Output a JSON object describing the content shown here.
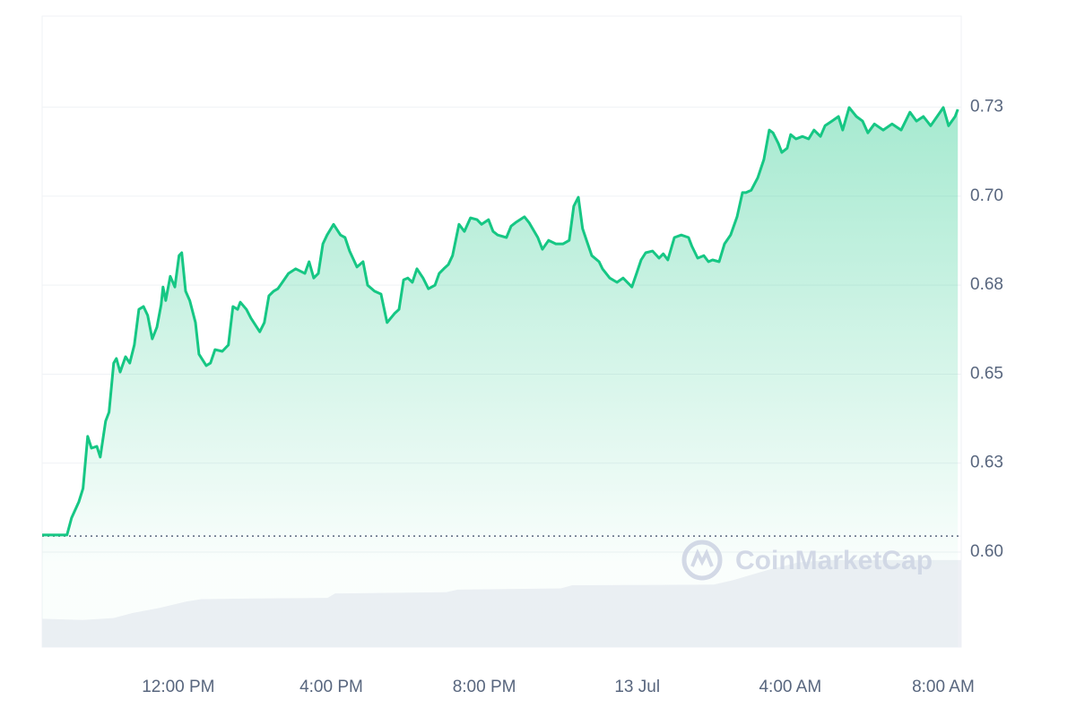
{
  "chart_data": {
    "type": "line",
    "watermark": "CoinMarketCap",
    "color": "#16c784",
    "xlim": [
      8.44,
      32.47
    ],
    "xticks": [
      {
        "value": 12,
        "label": "12:00 PM"
      },
      {
        "value": 16,
        "label": "4:00 PM"
      },
      {
        "value": 20,
        "label": "8:00 PM"
      },
      {
        "value": 24,
        "label": "13 Jul"
      },
      {
        "value": 28,
        "label": "4:00 AM"
      },
      {
        "value": 32,
        "label": "8:00 AM"
      }
    ],
    "ylim": [
      0.5733,
      0.7506
    ],
    "yticks": [
      {
        "value": 0.6,
        "label": "0.60"
      },
      {
        "value": 0.625,
        "label": "0.63"
      },
      {
        "value": 0.65,
        "label": "0.65"
      },
      {
        "value": 0.675,
        "label": "0.68"
      },
      {
        "value": 0.7,
        "label": "0.70"
      },
      {
        "value": 0.725,
        "label": "0.73"
      }
    ],
    "grid": true,
    "baseline": 0.6045,
    "x": [
      8.44,
      8.74,
      9.09,
      9.21,
      9.4,
      9.51,
      9.63,
      9.73,
      9.87,
      9.96,
      10.1,
      10.19,
      10.31,
      10.38,
      10.48,
      10.62,
      10.73,
      10.85,
      10.97,
      11.09,
      11.2,
      11.32,
      11.44,
      11.55,
      11.6,
      11.67,
      11.79,
      11.91,
      12.02,
      12.09,
      12.19,
      12.3,
      12.45,
      12.54,
      12.73,
      12.84,
      12.96,
      13.15,
      13.31,
      13.43,
      13.55,
      13.62,
      13.78,
      13.9,
      14.13,
      14.25,
      14.37,
      14.49,
      14.6,
      14.72,
      14.88,
      15.07,
      15.31,
      15.42,
      15.54,
      15.66,
      15.78,
      15.89,
      16.06,
      16.24,
      16.36,
      16.48,
      16.67,
      16.83,
      16.95,
      17.13,
      17.3,
      17.46,
      17.65,
      17.77,
      17.89,
      18.0,
      18.12,
      18.24,
      18.4,
      18.54,
      18.71,
      18.82,
      18.94,
      19.06,
      19.17,
      19.34,
      19.48,
      19.64,
      19.81,
      19.93,
      20.11,
      20.23,
      20.35,
      20.58,
      20.7,
      20.82,
      21.05,
      21.17,
      21.4,
      21.52,
      21.68,
      21.87,
      22.06,
      22.22,
      22.34,
      22.46,
      22.57,
      22.69,
      22.81,
      23.0,
      23.09,
      23.28,
      23.47,
      23.63,
      23.86,
      23.98,
      24.1,
      24.22,
      24.4,
      24.57,
      24.68,
      24.8,
      24.97,
      25.15,
      25.34,
      25.43,
      25.58,
      25.74,
      25.86,
      25.97,
      26.14,
      26.28,
      26.44,
      26.61,
      26.75,
      26.84,
      26.98,
      27.15,
      27.31,
      27.45,
      27.55,
      27.69,
      27.78,
      27.92,
      28.01,
      28.15,
      28.32,
      28.48,
      28.62,
      28.79,
      28.91,
      29.09,
      29.26,
      29.37,
      29.54,
      29.73,
      29.89,
      30.03,
      30.2,
      30.43,
      30.66,
      30.9,
      31.13,
      31.3,
      31.48,
      31.67,
      31.84,
      32.0,
      32.14,
      32.31,
      32.38
    ],
    "values": [
      0.6048,
      0.6048,
      0.6048,
      0.6096,
      0.6141,
      0.6179,
      0.6325,
      0.6292,
      0.6297,
      0.6267,
      0.6368,
      0.6393,
      0.6531,
      0.6544,
      0.6506,
      0.6549,
      0.6531,
      0.6582,
      0.6682,
      0.669,
      0.6665,
      0.6599,
      0.6632,
      0.6695,
      0.6745,
      0.6707,
      0.6775,
      0.6745,
      0.6833,
      0.6841,
      0.6733,
      0.6707,
      0.6645,
      0.6556,
      0.6524,
      0.6531,
      0.6569,
      0.6564,
      0.6582,
      0.669,
      0.6682,
      0.6702,
      0.6682,
      0.6657,
      0.6619,
      0.6645,
      0.672,
      0.6733,
      0.674,
      0.6758,
      0.6783,
      0.6796,
      0.6783,
      0.6816,
      0.677,
      0.6783,
      0.6866,
      0.6891,
      0.6921,
      0.6891,
      0.6884,
      0.6846,
      0.6801,
      0.6816,
      0.675,
      0.6733,
      0.6725,
      0.6645,
      0.667,
      0.6682,
      0.6765,
      0.677,
      0.6758,
      0.6796,
      0.677,
      0.674,
      0.675,
      0.6783,
      0.6796,
      0.6808,
      0.6833,
      0.6921,
      0.6901,
      0.6939,
      0.6934,
      0.6921,
      0.6934,
      0.6901,
      0.6891,
      0.6884,
      0.6916,
      0.6926,
      0.6942,
      0.6926,
      0.6884,
      0.6851,
      0.6876,
      0.6866,
      0.6866,
      0.6876,
      0.6972,
      0.6997,
      0.6909,
      0.6871,
      0.6833,
      0.6816,
      0.6796,
      0.677,
      0.6758,
      0.677,
      0.6745,
      0.6783,
      0.6821,
      0.6841,
      0.6846,
      0.6826,
      0.6838,
      0.6821,
      0.6884,
      0.6891,
      0.6884,
      0.6859,
      0.6826,
      0.6833,
      0.6816,
      0.6821,
      0.6816,
      0.6866,
      0.6891,
      0.6942,
      0.701,
      0.701,
      0.7017,
      0.7052,
      0.7103,
      0.7186,
      0.7178,
      0.7148,
      0.7123,
      0.7135,
      0.7173,
      0.7161,
      0.7168,
      0.7161,
      0.7186,
      0.7168,
      0.7198,
      0.7211,
      0.7224,
      0.7186,
      0.7249,
      0.7224,
      0.7211,
      0.7178,
      0.7203,
      0.7186,
      0.7203,
      0.7186,
      0.7236,
      0.7211,
      0.7224,
      0.7198,
      0.7224,
      0.7249,
      0.7198,
      0.7224,
      0.7244
    ],
    "y2lim": [
      0,
      100
    ],
    "volume": {
      "axis": "y2",
      "color": "#eef0f5",
      "x": [
        8.44,
        9.5,
        10.3,
        10.8,
        11.5,
        12.2,
        12.6,
        14.0,
        15.9,
        16.1,
        19.0,
        19.3,
        22.0,
        22.3,
        26.0,
        26.5,
        27.4,
        28.2,
        29.0,
        32.47
      ],
      "values": [
        4.5,
        4.3,
        4.6,
        5.4,
        6.2,
        7.2,
        7.6,
        7.7,
        7.8,
        8.5,
        8.7,
        9.1,
        9.3,
        9.8,
        9.9,
        10.6,
        12.2,
        13.4,
        13.8,
        13.8
      ]
    }
  }
}
